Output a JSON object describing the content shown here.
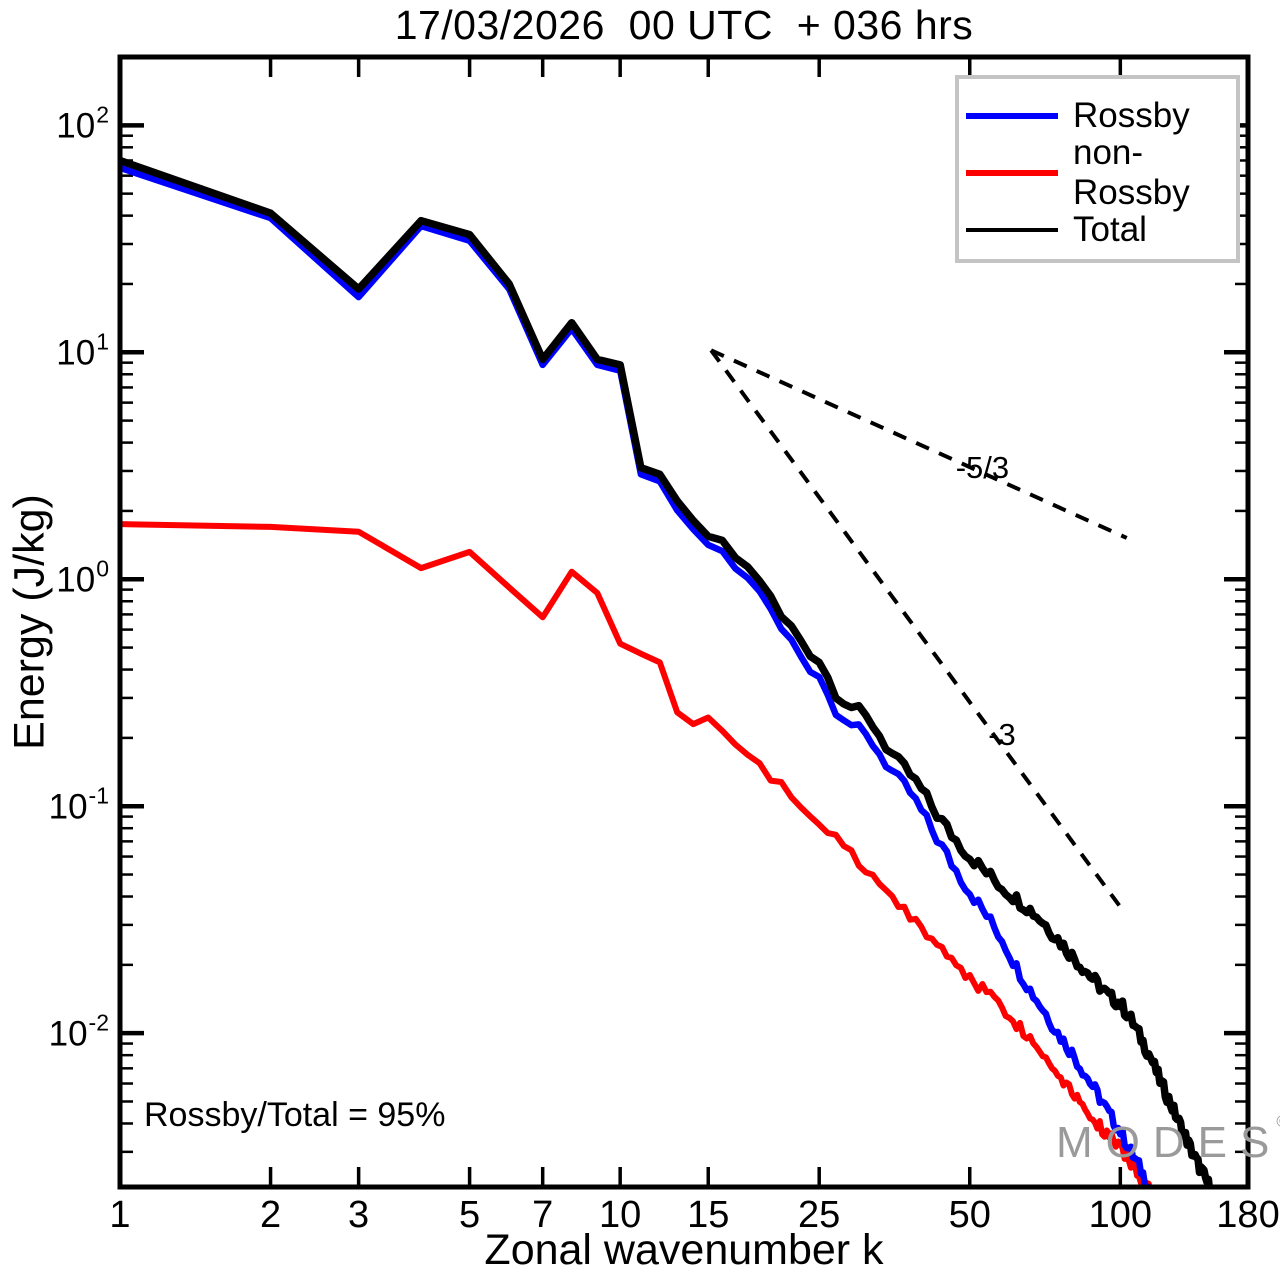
{
  "title": "17/03/2026  00 UTC  + 036 hrs",
  "annotation": "Rossby/Total = 95%",
  "watermark": {
    "text": "MODES",
    "mark": "©"
  },
  "axes": {
    "xlabel": "Zonal wavenumber k",
    "ylabel": "Energy (J/kg)",
    "x_tick_values": [
      1,
      2,
      3,
      5,
      7,
      10,
      15,
      25,
      50,
      100,
      180
    ],
    "y_major_exponents": [
      2,
      1,
      0,
      -1,
      -2
    ],
    "axis_color": "#000000"
  },
  "legend": {
    "items": [
      {
        "label": "Rossby",
        "color": "#0000ff",
        "thickness": 6
      },
      {
        "label": "non-Rossby",
        "color": "#ff0000",
        "thickness": 6
      },
      {
        "label": "Total",
        "color": "#000000",
        "thickness": 4
      }
    ]
  },
  "chart_data": {
    "type": "line",
    "title": "17/03/2026  00 UTC  + 036 hrs",
    "xlabel": "Zonal wavenumber k",
    "ylabel": "Energy (J/kg)",
    "x_scale": "log",
    "y_scale": "log",
    "xlim": [
      1,
      180
    ],
    "ylim": [
      0.0021,
      200
    ],
    "grid": false,
    "legend_position": "top-right",
    "series": [
      {
        "name": "Total",
        "color": "#000000",
        "width": 7.5,
        "points": [
          [
            1,
            70
          ],
          [
            2,
            41
          ],
          [
            3,
            19
          ],
          [
            4,
            38
          ],
          [
            5,
            33
          ],
          [
            6,
            20
          ],
          [
            7,
            9.3
          ],
          [
            8,
            13.5
          ],
          [
            9,
            9.3
          ],
          [
            10,
            8.8
          ],
          [
            11,
            3.1
          ],
          [
            12,
            2.9
          ],
          [
            13,
            2.2
          ],
          [
            14,
            1.8
          ],
          [
            15,
            1.55
          ],
          [
            16,
            1.45
          ],
          [
            17,
            1.25
          ],
          [
            18,
            1.12
          ],
          [
            19,
            1.0
          ],
          [
            20,
            0.82
          ],
          [
            21,
            0.68
          ],
          [
            22,
            0.61
          ],
          [
            23,
            0.54
          ],
          [
            24,
            0.48
          ],
          [
            25,
            0.44
          ],
          [
            26,
            0.37
          ],
          [
            27,
            0.32
          ],
          [
            28,
            0.295
          ],
          [
            29,
            0.275
          ],
          [
            30,
            0.26
          ],
          [
            32,
            0.23
          ],
          [
            34,
            0.185
          ],
          [
            36,
            0.155
          ],
          [
            38,
            0.138
          ],
          [
            40,
            0.118
          ],
          [
            43,
            0.092
          ],
          [
            46,
            0.075
          ],
          [
            50,
            0.06
          ],
          [
            54,
            0.051
          ],
          [
            58,
            0.044
          ],
          [
            62,
            0.039
          ],
          [
            66,
            0.035
          ],
          [
            70,
            0.031
          ],
          [
            75,
            0.026
          ],
          [
            80,
            0.022
          ],
          [
            85,
            0.019
          ],
          [
            90,
            0.0165
          ],
          [
            95,
            0.0145
          ],
          [
            100,
            0.0135
          ],
          [
            105,
            0.0115
          ],
          [
            110,
            0.0095
          ],
          [
            115,
            0.0078
          ],
          [
            120,
            0.0062
          ],
          [
            125,
            0.0051
          ],
          [
            130,
            0.0042
          ],
          [
            135,
            0.0035
          ],
          [
            140,
            0.0029
          ],
          [
            145,
            0.0025
          ],
          [
            150,
            0.00215
          ],
          [
            152,
            0.0021
          ]
        ]
      },
      {
        "name": "Rossby",
        "color": "#0000ff",
        "width": 6.5,
        "points": [
          [
            1,
            65
          ],
          [
            2,
            39
          ],
          [
            3,
            17.5
          ],
          [
            4,
            36
          ],
          [
            5,
            31
          ],
          [
            6,
            19
          ],
          [
            7,
            8.8
          ],
          [
            8,
            12.7
          ],
          [
            9,
            8.8
          ],
          [
            10,
            8.3
          ],
          [
            11,
            2.9
          ],
          [
            12,
            2.7
          ],
          [
            13,
            2.0
          ],
          [
            14,
            1.65
          ],
          [
            15,
            1.42
          ],
          [
            16,
            1.3
          ],
          [
            17,
            1.12
          ],
          [
            18,
            1.0
          ],
          [
            19,
            0.9
          ],
          [
            20,
            0.72
          ],
          [
            21,
            0.6
          ],
          [
            22,
            0.53
          ],
          [
            23,
            0.46
          ],
          [
            24,
            0.41
          ],
          [
            25,
            0.38
          ],
          [
            26,
            0.31
          ],
          [
            27,
            0.27
          ],
          [
            28,
            0.25
          ],
          [
            29,
            0.23
          ],
          [
            30,
            0.215
          ],
          [
            32,
            0.19
          ],
          [
            34,
            0.155
          ],
          [
            36,
            0.13
          ],
          [
            38,
            0.115
          ],
          [
            40,
            0.095
          ],
          [
            43,
            0.072
          ],
          [
            46,
            0.056
          ],
          [
            50,
            0.042
          ],
          [
            54,
            0.033
          ],
          [
            58,
            0.026
          ],
          [
            62,
            0.0195
          ],
          [
            66,
            0.0155
          ],
          [
            70,
            0.0128
          ],
          [
            75,
            0.01
          ],
          [
            80,
            0.0082
          ],
          [
            85,
            0.0066
          ],
          [
            90,
            0.0054
          ],
          [
            95,
            0.0044
          ],
          [
            100,
            0.0037
          ],
          [
            105,
            0.003
          ],
          [
            110,
            0.0025
          ],
          [
            114,
            0.0021
          ]
        ]
      },
      {
        "name": "non-Rossby",
        "color": "#ff0000",
        "width": 6,
        "points": [
          [
            1,
            1.75
          ],
          [
            2,
            1.7
          ],
          [
            3,
            1.62
          ],
          [
            4,
            1.12
          ],
          [
            5,
            1.32
          ],
          [
            6,
            0.92
          ],
          [
            7,
            0.68
          ],
          [
            8,
            1.08
          ],
          [
            9,
            0.87
          ],
          [
            10,
            0.52
          ],
          [
            11,
            0.47
          ],
          [
            12,
            0.43
          ],
          [
            13,
            0.26
          ],
          [
            14,
            0.23
          ],
          [
            15,
            0.245
          ],
          [
            16,
            0.21
          ],
          [
            17,
            0.185
          ],
          [
            18,
            0.165
          ],
          [
            19,
            0.15
          ],
          [
            20,
            0.133
          ],
          [
            21,
            0.125
          ],
          [
            22,
            0.112
          ],
          [
            23,
            0.099
          ],
          [
            24,
            0.091
          ],
          [
            25,
            0.085
          ],
          [
            27,
            0.071
          ],
          [
            30,
            0.056
          ],
          [
            33,
            0.045
          ],
          [
            36,
            0.037
          ],
          [
            40,
            0.029
          ],
          [
            44,
            0.0235
          ],
          [
            48,
            0.019
          ],
          [
            52,
            0.0163
          ],
          [
            56,
            0.0142
          ],
          [
            60,
            0.012
          ],
          [
            65,
            0.0098
          ],
          [
            70,
            0.0081
          ],
          [
            75,
            0.0067
          ],
          [
            80,
            0.0056
          ],
          [
            85,
            0.0047
          ],
          [
            90,
            0.004
          ],
          [
            95,
            0.0035
          ],
          [
            100,
            0.0031
          ],
          [
            105,
            0.0027
          ],
          [
            110,
            0.0023
          ],
          [
            114,
            0.0021
          ]
        ]
      }
    ],
    "reference_lines": [
      {
        "label": "-5/3",
        "from": [
          15.2,
          10.2
        ],
        "to": [
          103,
          1.52
        ],
        "label_at": [
          53,
          3.1
        ],
        "style": "dashed",
        "color": "#000000"
      },
      {
        "label": "-3",
        "from": [
          15.2,
          10.2
        ],
        "to": [
          100,
          0.036
        ],
        "label_at": [
          58,
          0.205
        ],
        "style": "dashed",
        "color": "#000000"
      }
    ],
    "annotations": [
      {
        "text": "Rossby/Total = 95%"
      }
    ]
  }
}
